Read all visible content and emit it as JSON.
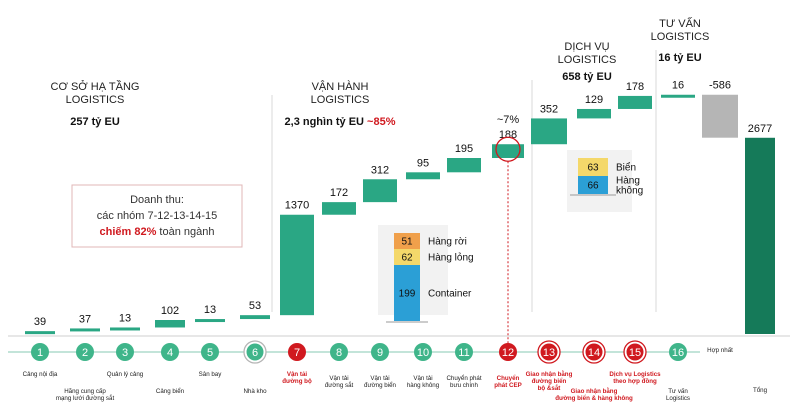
{
  "sections": [
    {
      "title_lines": [
        "CƠ SỞ HẠ TẦNG",
        "LOGISTICS"
      ],
      "value": "257 tỷ EU"
    },
    {
      "title_lines": [
        "VẬN HÀNH",
        "LOGISTICS"
      ],
      "value_black": "2,3 nghìn tỷ EU",
      "value_red": "~85%"
    },
    {
      "title_lines": [
        "DỊCH VỤ",
        "LOGISTICS"
      ],
      "value": "658 tỷ EU"
    },
    {
      "title_lines": [
        "TƯ VẤN",
        "LOGISTICS"
      ],
      "value": "16 tỷ EU"
    }
  ],
  "note": {
    "line1": "Doanh thu:",
    "line2": "các nhóm 7-12-13-14-15",
    "line3_red": "chiếm 82%",
    "line3_rest": " toàn ngành"
  },
  "cep_pct_label": "~7%",
  "chart_data": {
    "type": "bar",
    "subtype": "waterfall",
    "unit": "tỷ EU",
    "categories": [
      {
        "num": "1",
        "lines": [
          "Cảng nội địa"
        ],
        "style": "solid"
      },
      {
        "num": "2",
        "lines": [
          "Hãng cung cấp",
          "mạng lưới đường sắt"
        ],
        "style": "solid"
      },
      {
        "num": "3",
        "lines": [
          "Quản lý cảng"
        ],
        "style": "solid"
      },
      {
        "num": "4",
        "lines": [
          "Cảng biển"
        ],
        "style": "solid"
      },
      {
        "num": "5",
        "lines": [
          "Sân bay"
        ],
        "style": "solid"
      },
      {
        "num": "6",
        "lines": [
          "Nhà kho"
        ],
        "style": "ring-grey"
      },
      {
        "num": "7",
        "lines": [
          "Vận tải",
          "đường bộ"
        ],
        "style": "red-solid"
      },
      {
        "num": "8",
        "lines": [
          "Vận tải",
          "đường sắt"
        ],
        "style": "solid"
      },
      {
        "num": "9",
        "lines": [
          "Vận tải",
          "đường biển"
        ],
        "style": "solid"
      },
      {
        "num": "10",
        "lines": [
          "Vận tải",
          "hàng không"
        ],
        "style": "solid"
      },
      {
        "num": "11",
        "lines": [
          "Chuyển phát",
          "bưu chính"
        ],
        "style": "solid"
      },
      {
        "num": "12",
        "lines": [
          "Chuyển",
          "phát CEP"
        ],
        "style": "red-solid"
      },
      {
        "num": "13",
        "lines": [
          "Giao nhận bằng",
          "đường biển",
          "bộ &sắt"
        ],
        "style": "red-ring"
      },
      {
        "num": "14",
        "lines": [
          "Giao nhận bằng",
          "đường biển & hàng không"
        ],
        "style": "red-ring"
      },
      {
        "num": "15",
        "lines": [
          "Dịch vụ Logistics",
          "theo hợp đồng"
        ],
        "style": "red-ring"
      },
      {
        "num": "16",
        "lines": [
          "Tư vấn",
          "Logistics"
        ],
        "style": "solid"
      },
      {
        "num": "",
        "lines": [
          "Hợp nhất"
        ],
        "style": "none"
      },
      {
        "num": "",
        "lines": [
          "Tổng"
        ],
        "style": "none"
      }
    ],
    "values": [
      39,
      37,
      13,
      102,
      13,
      53,
      1370,
      172,
      312,
      95,
      195,
      188,
      352,
      129,
      178,
      16,
      -586,
      2677
    ],
    "value_labels": [
      "39",
      "37",
      "13",
      "102",
      "13",
      "53",
      "1370",
      "172",
      "312",
      "95",
      "195",
      "188",
      "352",
      "129",
      "178",
      "16",
      "-586",
      "2677"
    ],
    "total_index": 17,
    "colors": {
      "up": "#2aa784",
      "negative": "#b5b5b5",
      "total": "#157a59",
      "red": "#d0191f"
    },
    "insets": [
      {
        "anchor_index": 6,
        "segments": [
          {
            "value": "51",
            "label": "Hàng rời",
            "color": "#f0a04b"
          },
          {
            "value": "62",
            "label": "Hàng lỏng",
            "color": "#f4d86a"
          },
          {
            "value": "199",
            "label": "Container",
            "color": "#2b9fd6"
          }
        ]
      },
      {
        "anchor_index": 13,
        "segments": [
          {
            "value": "63",
            "label": "Biển",
            "color": "#f4d86a"
          },
          {
            "value": "66",
            "label": "Hàng không",
            "label_lines": [
              "Hàng",
              "không"
            ],
            "color": "#2b9fd6"
          }
        ]
      }
    ]
  }
}
